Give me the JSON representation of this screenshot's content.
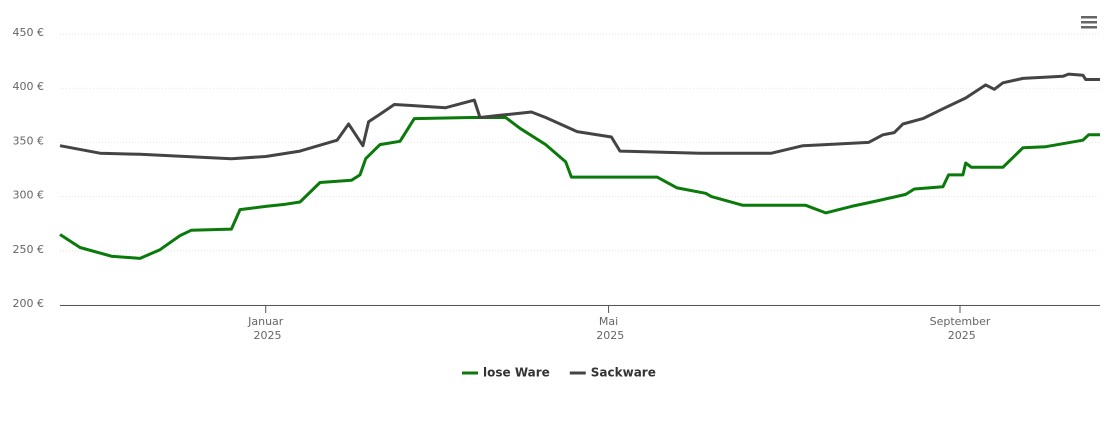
{
  "chart_data": {
    "type": "line",
    "xlim": [
      -72,
      292
    ],
    "xticks": [
      {
        "value": 0,
        "label": "Januar 2025"
      },
      {
        "value": 120,
        "label": "Mai 2025"
      },
      {
        "value": 243,
        "label": "September 2025"
      }
    ],
    "ylim": [
      200,
      450
    ],
    "yticks": [
      {
        "value": 200,
        "label": "200 €"
      },
      {
        "value": 250,
        "label": "250 €"
      },
      {
        "value": 300,
        "label": "300 €"
      },
      {
        "value": 350,
        "label": "350 €"
      },
      {
        "value": 400,
        "label": "400 €"
      },
      {
        "value": 450,
        "label": "450 €"
      }
    ],
    "grid": true,
    "legend": "bottom",
    "series": [
      {
        "name": "lose Ware",
        "color": "#0a7a0a",
        "x": [
          -72,
          -65,
          -54,
          -44,
          -37,
          -30,
          -26,
          -12,
          -9,
          0,
          7,
          12,
          19,
          30,
          33,
          35,
          40,
          47,
          52,
          72,
          84,
          89,
          98,
          105,
          107,
          137,
          144,
          154,
          156,
          167,
          189,
          196,
          205,
          214,
          224,
          227,
          237,
          239,
          244,
          245,
          247,
          258,
          265,
          273,
          286,
          288,
          292
        ],
        "values": [
          265,
          253,
          245,
          243,
          251,
          264,
          269,
          270,
          288,
          291,
          293,
          295,
          313,
          315,
          320,
          335,
          348,
          351,
          372,
          373,
          373,
          363,
          348,
          332,
          318,
          318,
          308,
          303,
          300,
          292,
          292,
          285,
          291,
          296,
          302,
          307,
          309,
          320,
          320,
          331,
          327,
          327,
          345,
          346,
          352,
          357,
          357
        ]
      },
      {
        "name": "Sackware",
        "color": "#444444",
        "x": [
          -72,
          -58,
          -44,
          -12,
          0,
          12,
          25,
          29,
          34,
          36,
          40,
          45,
          51,
          63,
          73,
          75,
          82,
          93,
          98,
          109,
          121,
          124,
          152,
          177,
          188,
          196,
          211,
          216,
          220,
          223,
          230,
          237,
          245,
          252,
          255,
          258,
          265,
          279,
          281,
          286,
          287,
          292
        ],
        "values": [
          347,
          340,
          339,
          335,
          337,
          342,
          352,
          367,
          347,
          369,
          376,
          385,
          384,
          382,
          389,
          373,
          375,
          378,
          373,
          360,
          355,
          342,
          340,
          340,
          347,
          348,
          350,
          357,
          359,
          367,
          372,
          381,
          391,
          403,
          399,
          405,
          409,
          411,
          413,
          412,
          408,
          408
        ]
      }
    ]
  }
}
